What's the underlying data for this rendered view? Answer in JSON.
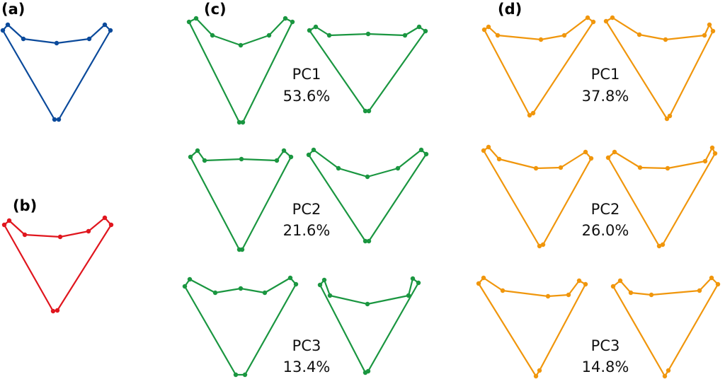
{
  "colors": {
    "a": "#0b4a9b",
    "b": "#e0161e",
    "c": "#1a9640",
    "d": "#f0960c"
  },
  "panels": {
    "a": {
      "label": "(a)"
    },
    "b": {
      "label": "(b)"
    },
    "c": {
      "label": "(c)"
    },
    "d": {
      "label": "(d)"
    }
  },
  "components": {
    "c": [
      {
        "name": "PC1",
        "variance": "53.6%"
      },
      {
        "name": "PC2",
        "variance": "21.6%"
      },
      {
        "name": "PC3",
        "variance": "13.4%"
      }
    ],
    "d": [
      {
        "name": "PC1",
        "variance": "37.8%"
      },
      {
        "name": "PC2",
        "variance": "26.0%"
      },
      {
        "name": "PC3",
        "variance": "14.8%"
      }
    ]
  }
}
